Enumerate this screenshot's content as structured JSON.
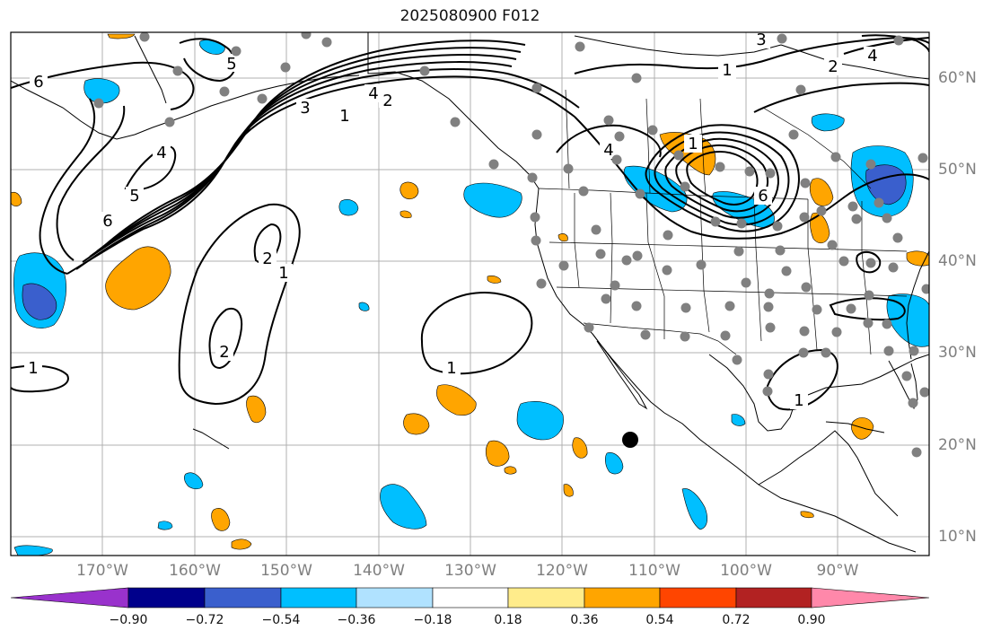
{
  "title": "2025080900 F012",
  "lat_labels": [
    "60°N",
    "50°N",
    "40°N",
    "30°N",
    "20°N",
    "10°N"
  ],
  "lon_labels": [
    "170°W",
    "160°W",
    "150°W",
    "140°W",
    "130°W",
    "120°W",
    "110°W",
    "100°W",
    "90°W"
  ],
  "contour_labels": [
    "6",
    "5",
    "4",
    "3",
    "2",
    "1",
    "4",
    "5",
    "6",
    "2",
    "1",
    "2",
    "1",
    "1",
    "4",
    "6",
    "1",
    "2",
    "4",
    "3",
    "1",
    "1"
  ],
  "colorbar": {
    "tick_labels": [
      "−0.90",
      "−0.72",
      "−0.54",
      "−0.36",
      "−0.18",
      "0.18",
      "0.36",
      "0.54",
      "0.72",
      "0.90"
    ],
    "colors": [
      "#9932cc",
      "#00008b",
      "#3a5fcd",
      "#00bfff",
      "#b0e2ff",
      "#ffffff",
      "#ffec8b",
      "#ffa500",
      "#ff4500",
      "#b22222",
      "#ff88aa"
    ]
  },
  "marker": {
    "type": "black-dot"
  }
}
